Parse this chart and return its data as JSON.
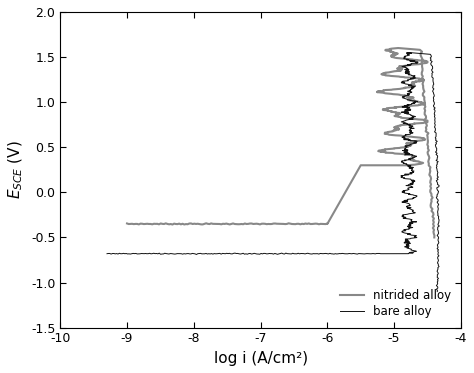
{
  "title": "",
  "xlabel": "log i (A/cm²)",
  "ylabel": "E_SCE (V)",
  "xlim": [
    -10,
    -4
  ],
  "ylim": [
    -1.5,
    2.0
  ],
  "xticks": [
    -10,
    -9,
    -8,
    -7,
    -6,
    -5,
    -4
  ],
  "yticks": [
    -1.5,
    -1.0,
    -0.5,
    0.0,
    0.5,
    1.0,
    1.5,
    2.0
  ],
  "legend_labels": [
    "nitrided alloy",
    "bare alloy"
  ],
  "nitrided_color": "#888888",
  "bare_color": "#111111",
  "background_color": "#ffffff",
  "nitrided_lw": 1.5,
  "bare_lw": 0.7
}
